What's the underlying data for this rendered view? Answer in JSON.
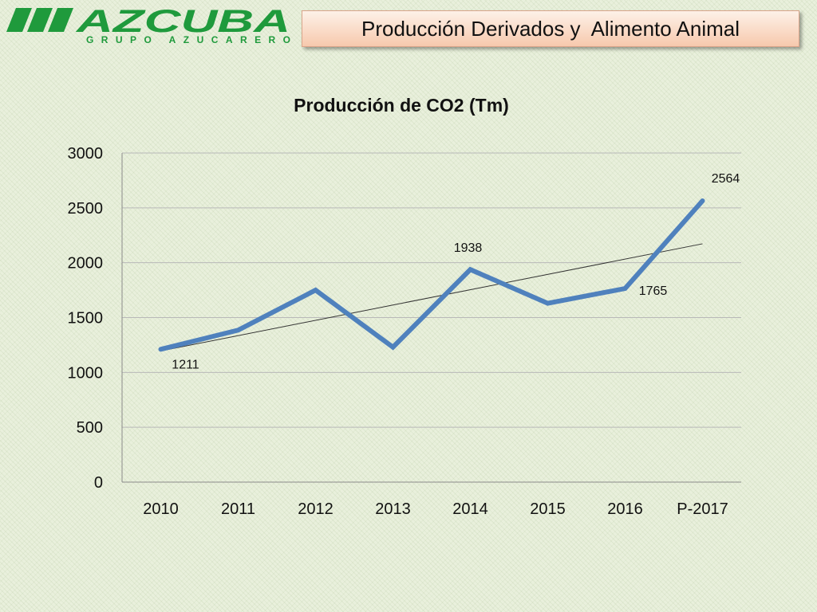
{
  "header": {
    "logo_text": "AZCUBA",
    "logo_subtext": "GRUPO AZUCARERO",
    "title": "Producción Derivados y  Alimento Animal"
  },
  "colors": {
    "brand_green": "#1f9a3c",
    "series_line": "#4f81bd",
    "trend_line": "#333333"
  },
  "chart_data": {
    "type": "line",
    "title": "Producción de CO2 (Tm)",
    "categories": [
      "2010",
      "2011",
      "2012",
      "2013",
      "2014",
      "2015",
      "2016",
      "P-2017"
    ],
    "series": [
      {
        "values": [
          1211,
          1385,
          1750,
          1230,
          1938,
          1630,
          1765,
          2564
        ]
      }
    ],
    "data_labels": [
      {
        "index": 0,
        "text": "1211"
      },
      {
        "index": 4,
        "text": "1938"
      },
      {
        "index": 6,
        "text": "1765"
      },
      {
        "index": 7,
        "text": "2564"
      }
    ],
    "trendline": "linear",
    "ylim": [
      0,
      3000
    ],
    "yticks": [
      0,
      500,
      1000,
      1500,
      2000,
      2500,
      3000
    ],
    "grid": true,
    "legend": "none"
  }
}
